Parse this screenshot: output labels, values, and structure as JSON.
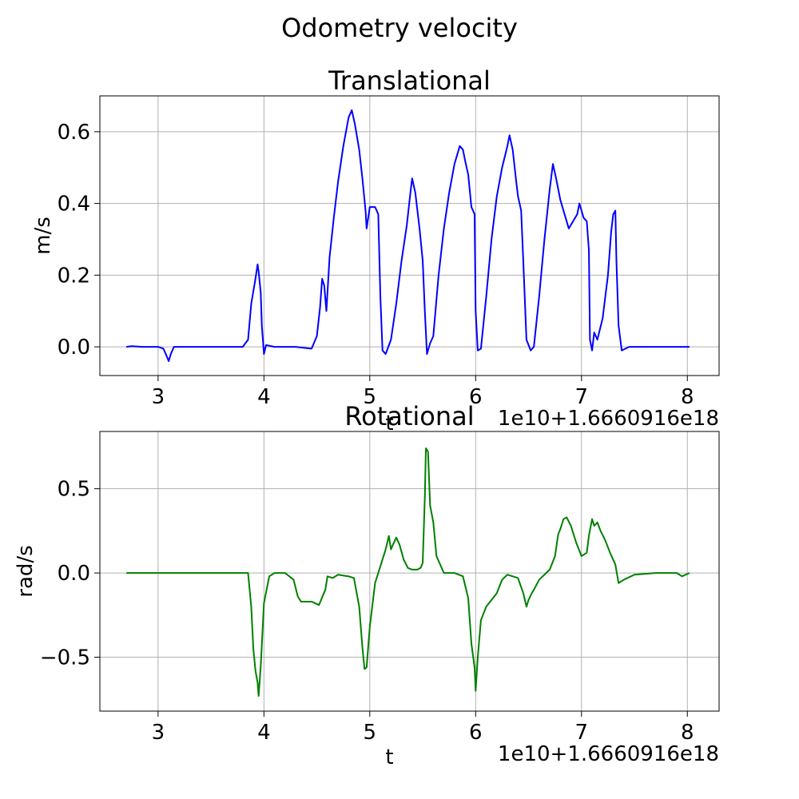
{
  "figure": {
    "suptitle": "Odometry velocity"
  },
  "chart_data": [
    {
      "type": "line",
      "title": "Translational",
      "xlabel": "t",
      "ylabel": "m/s",
      "x_offset_text": "1e10+1.6660916e18",
      "xlim": [
        2.45,
        8.3
      ],
      "ylim": [
        -0.08,
        0.7
      ],
      "xticks": [
        3,
        4,
        5,
        6,
        7,
        8
      ],
      "xtick_labels": [
        "3",
        "4",
        "5",
        "6",
        "7",
        "8"
      ],
      "yticks": [
        0.0,
        0.2,
        0.4,
        0.6
      ],
      "ytick_labels": [
        "0.0",
        "0.2",
        "0.4",
        "0.6"
      ],
      "grid": true,
      "series": [
        {
          "color": "#0000ff",
          "x": [
            2.7,
            2.75,
            2.85,
            3.0,
            3.05,
            3.08,
            3.1,
            3.12,
            3.15,
            3.5,
            3.8,
            3.85,
            3.88,
            3.92,
            3.94,
            3.95,
            3.96,
            3.97,
            3.98,
            4.0,
            4.02,
            4.1,
            4.3,
            4.45,
            4.5,
            4.53,
            4.55,
            4.57,
            4.59,
            4.6,
            4.62,
            4.66,
            4.7,
            4.75,
            4.8,
            4.83,
            4.86,
            4.9,
            4.93,
            4.96,
            4.97,
            4.98,
            5.0,
            5.05,
            5.08,
            5.1,
            5.12,
            5.15,
            5.2,
            5.25,
            5.3,
            5.35,
            5.38,
            5.4,
            5.43,
            5.47,
            5.5,
            5.52,
            5.54,
            5.57,
            5.6,
            5.65,
            5.7,
            5.75,
            5.8,
            5.85,
            5.88,
            5.9,
            5.93,
            5.96,
            5.99,
            6.0,
            6.02,
            6.05,
            6.1,
            6.15,
            6.2,
            6.25,
            6.3,
            6.32,
            6.35,
            6.38,
            6.4,
            6.43,
            6.45,
            6.48,
            6.52,
            6.55,
            6.6,
            6.65,
            6.7,
            6.73,
            6.76,
            6.8,
            6.84,
            6.88,
            6.92,
            6.96,
            6.98,
            7.0,
            7.02,
            7.05,
            7.07,
            7.08,
            7.1,
            7.12,
            7.15,
            7.2,
            7.25,
            7.28,
            7.3,
            7.32,
            7.33,
            7.35,
            7.38,
            7.45,
            7.6,
            7.8,
            7.95,
            8.02
          ],
          "values": [
            0.0,
            0.002,
            0.0,
            0.0,
            -0.005,
            -0.025,
            -0.04,
            -0.02,
            0.0,
            0.0,
            0.0,
            0.02,
            0.12,
            0.19,
            0.23,
            0.21,
            0.18,
            0.15,
            0.06,
            -0.02,
            0.005,
            0.0,
            0.0,
            -0.005,
            0.03,
            0.11,
            0.19,
            0.17,
            0.1,
            0.15,
            0.25,
            0.36,
            0.46,
            0.56,
            0.64,
            0.66,
            0.62,
            0.55,
            0.47,
            0.38,
            0.33,
            0.35,
            0.39,
            0.39,
            0.37,
            0.14,
            -0.01,
            -0.02,
            0.02,
            0.12,
            0.24,
            0.34,
            0.42,
            0.47,
            0.43,
            0.33,
            0.24,
            0.1,
            -0.02,
            0.01,
            0.03,
            0.2,
            0.33,
            0.43,
            0.51,
            0.56,
            0.55,
            0.52,
            0.48,
            0.39,
            0.37,
            0.1,
            -0.01,
            -0.005,
            0.14,
            0.3,
            0.42,
            0.5,
            0.56,
            0.59,
            0.55,
            0.47,
            0.42,
            0.38,
            0.24,
            0.02,
            -0.01,
            0.0,
            0.14,
            0.3,
            0.44,
            0.51,
            0.47,
            0.41,
            0.37,
            0.33,
            0.35,
            0.37,
            0.4,
            0.38,
            0.36,
            0.35,
            0.27,
            0.02,
            -0.01,
            0.04,
            0.02,
            0.08,
            0.2,
            0.32,
            0.37,
            0.38,
            0.24,
            0.06,
            -0.01,
            0.0,
            0.0,
            0.0,
            0.0,
            0.0
          ]
        }
      ]
    },
    {
      "type": "line",
      "title": "Rotational",
      "xlabel": "t",
      "ylabel": "rad/s",
      "x_offset_text": "1e10+1.6660916e18",
      "xlim": [
        2.45,
        8.3
      ],
      "ylim": [
        -0.82,
        0.84
      ],
      "xticks": [
        3,
        4,
        5,
        6,
        7,
        8
      ],
      "xtick_labels": [
        "3",
        "4",
        "5",
        "6",
        "7",
        "8"
      ],
      "yticks": [
        -0.5,
        0.0,
        0.5
      ],
      "ytick_labels": [
        "−0.5",
        "0.0",
        "0.5"
      ],
      "grid": true,
      "series": [
        {
          "color": "#008000",
          "x": [
            2.7,
            3.0,
            3.5,
            3.85,
            3.88,
            3.9,
            3.92,
            3.94,
            3.95,
            3.97,
            4.0,
            4.05,
            4.1,
            4.2,
            4.28,
            4.32,
            4.35,
            4.45,
            4.52,
            4.58,
            4.6,
            4.65,
            4.7,
            4.8,
            4.85,
            4.9,
            4.93,
            4.95,
            4.97,
            5.0,
            5.05,
            5.1,
            5.15,
            5.18,
            5.2,
            5.22,
            5.25,
            5.28,
            5.32,
            5.36,
            5.4,
            5.45,
            5.48,
            5.5,
            5.52,
            5.53,
            5.55,
            5.57,
            5.6,
            5.63,
            5.7,
            5.8,
            5.88,
            5.93,
            5.96,
            5.99,
            6.0,
            6.02,
            6.05,
            6.1,
            6.15,
            6.2,
            6.25,
            6.3,
            6.4,
            6.45,
            6.48,
            6.5,
            6.53,
            6.55,
            6.6,
            6.65,
            6.7,
            6.75,
            6.78,
            6.8,
            6.83,
            6.86,
            6.9,
            6.95,
            7.0,
            7.05,
            7.07,
            7.1,
            7.12,
            7.15,
            7.18,
            7.22,
            7.27,
            7.32,
            7.35,
            7.4,
            7.5,
            7.7,
            7.9,
            7.95,
            8.02
          ],
          "values": [
            0.0,
            0.0,
            0.0,
            0.0,
            -0.2,
            -0.45,
            -0.58,
            -0.65,
            -0.73,
            -0.55,
            -0.18,
            -0.02,
            0.0,
            0.0,
            -0.04,
            -0.14,
            -0.17,
            -0.17,
            -0.19,
            -0.1,
            -0.02,
            -0.03,
            -0.01,
            -0.02,
            -0.03,
            -0.2,
            -0.44,
            -0.57,
            -0.56,
            -0.32,
            -0.06,
            0.04,
            0.14,
            0.22,
            0.14,
            0.17,
            0.21,
            0.17,
            0.08,
            0.03,
            0.02,
            0.02,
            0.03,
            0.06,
            0.45,
            0.74,
            0.72,
            0.4,
            0.3,
            0.1,
            0.0,
            0.0,
            -0.02,
            -0.15,
            -0.42,
            -0.56,
            -0.7,
            -0.5,
            -0.28,
            -0.2,
            -0.16,
            -0.12,
            -0.04,
            -0.01,
            -0.03,
            -0.12,
            -0.2,
            -0.16,
            -0.12,
            -0.1,
            -0.04,
            -0.01,
            0.02,
            0.1,
            0.23,
            0.26,
            0.32,
            0.33,
            0.28,
            0.18,
            0.1,
            0.12,
            0.22,
            0.32,
            0.28,
            0.3,
            0.25,
            0.2,
            0.12,
            0.05,
            -0.06,
            -0.04,
            -0.01,
            0.0,
            0.0,
            -0.02,
            0.0
          ]
        }
      ]
    }
  ]
}
